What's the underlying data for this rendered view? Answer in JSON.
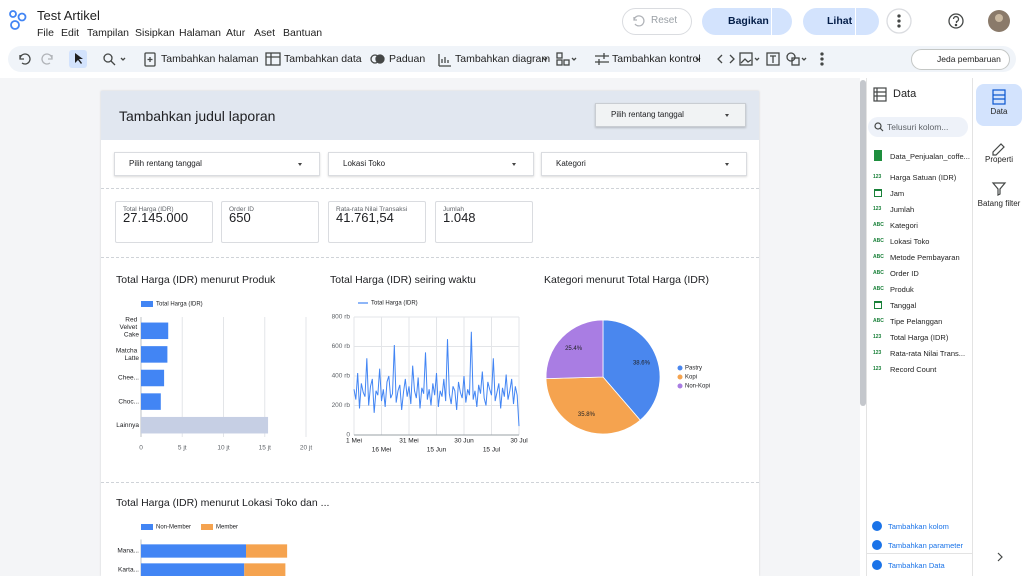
{
  "header": {
    "title": "Test Artikel",
    "menu": [
      "File",
      "Edit",
      "Tampilan",
      "Sisipkan",
      "Halaman",
      "Atur",
      "Aset",
      "Bantuan"
    ],
    "reset": "Reset",
    "share": "Bagikan",
    "view": "Lihat"
  },
  "toolbar": {
    "add_page": "Tambahkan halaman",
    "add_data": "Tambahkan data",
    "guide": "Paduan",
    "add_chart": "Tambahkan diagram",
    "add_control": "Tambahkan kontrol",
    "pause": "Jeda pembaruan"
  },
  "report": {
    "title": "Tambahkan judul laporan",
    "date_range": "Pilih rentang tanggal",
    "filters": [
      "Pilih rentang tanggal",
      "Lokasi Toko",
      "Kategori"
    ],
    "scorecards": [
      {
        "label": "Total Harga (IDR)",
        "value": "27.145.000"
      },
      {
        "label": "Order ID",
        "value": "650"
      },
      {
        "label": "Rata-rata Nilai Transaksi",
        "value": "41.761,54"
      },
      {
        "label": "Jumlah",
        "value": "1.048"
      }
    ]
  },
  "chart_data": [
    {
      "type": "bar",
      "orientation": "horizontal",
      "title": "Total Harga (IDR) menurut Produk",
      "categories": [
        "Red Velvet Cake",
        "Matcha Latte",
        "Chee...",
        "Choc...",
        "Lainnya"
      ],
      "series": [
        {
          "name": "Total Harga (IDR)",
          "color": "#4285f4",
          "colors": [
            "#4285f4",
            "#4285f4",
            "#4285f4",
            "#4285f4",
            "#c6cfe4"
          ],
          "values": [
            3300000,
            3200000,
            2800000,
            2400000,
            15400000
          ]
        }
      ],
      "xlim": [
        0,
        20000000
      ],
      "xticks": [
        0,
        {
          "value": 5000000,
          "label": "5 jt"
        },
        {
          "value": 10000000,
          "label": "10 jt"
        },
        {
          "value": 15000000,
          "label": "15 jt"
        },
        {
          "value": 20000000,
          "label": "20 jt"
        }
      ],
      "grid": true
    },
    {
      "type": "line",
      "title": "Total Harga (IDR) seiring waktu",
      "categories": [
        "1 Mei",
        null,
        null,
        null,
        null,
        null,
        null,
        null,
        null,
        null,
        null,
        null,
        null,
        null,
        null,
        "16 Mei",
        null,
        null,
        null,
        null,
        null,
        null,
        null,
        null,
        null,
        null,
        null,
        null,
        null,
        null,
        "31 Mei",
        null,
        null,
        null,
        null,
        null,
        null,
        null,
        null,
        null,
        null,
        null,
        null,
        null,
        null,
        "15 Jun",
        null,
        null,
        null,
        null,
        null,
        null,
        null,
        null,
        null,
        null,
        null,
        null,
        null,
        null,
        "30 Jun",
        null,
        null,
        null,
        null,
        null,
        null,
        null,
        null,
        null,
        null,
        null,
        null,
        null,
        null,
        "15 Jul",
        null,
        null,
        null,
        null,
        null,
        null,
        null,
        null,
        null,
        null,
        null,
        null,
        null,
        null,
        "30 Jul"
      ],
      "series": [
        {
          "name": "Total Harga (IDR)",
          "color": "#4285f4",
          "values": [
            310000,
            240000,
            420000,
            180000,
            350000,
            290000,
            260000,
            520000,
            200000,
            330000,
            380000,
            150000,
            300000,
            270000,
            450000,
            230000,
            310000,
            190000,
            360000,
            400000,
            250000,
            280000,
            610000,
            220000,
            300000,
            340000,
            170000,
            290000,
            380000,
            260000,
            330000,
            210000,
            470000,
            300000,
            250000,
            390000,
            180000,
            320000,
            280000,
            560000,
            240000,
            310000,
            200000,
            350000,
            270000,
            420000,
            190000,
            300000,
            260000,
            380000,
            230000,
            650000,
            280000,
            210000,
            330000,
            300000,
            170000,
            360000,
            290000,
            250000,
            400000,
            220000,
            310000,
            270000,
            700000,
            240000,
            300000,
            190000,
            340000,
            280000,
            430000,
            250000,
            200000,
            360000,
            310000,
            270000,
            520000,
            230000,
            290000,
            350000,
            180000,
            320000,
            260000,
            410000,
            240000,
            300000,
            380000,
            210000,
            330000,
            270000,
            60000
          ]
        }
      ],
      "ylim": [
        0,
        800000
      ],
      "yticks": [
        0,
        {
          "value": 200000,
          "label": "200 rb"
        },
        {
          "value": 400000,
          "label": "400 rb"
        },
        {
          "value": 600000,
          "label": "600 rb"
        },
        {
          "value": 800000,
          "label": "800 rb"
        }
      ],
      "grid": true
    },
    {
      "type": "pie",
      "title": "Kategori menurut Total Harga (IDR)",
      "categories": [
        "Pastry",
        "Kopi",
        "Non-Kopi"
      ],
      "values": [
        38.6,
        35.8,
        25.4
      ],
      "value_labels": [
        "38.6%",
        "35.8%",
        "25.4%"
      ],
      "colors": [
        "#4a87ee",
        "#f5a34f",
        "#a97de3"
      ]
    },
    {
      "type": "bar",
      "orientation": "horizontal",
      "stacked": true,
      "title": "Total Harga (IDR) menurut Lokasi Toko dan ...",
      "categories": [
        "Mana...",
        "Karta..."
      ],
      "series": [
        {
          "name": "Non-Member",
          "color": "#4285f4",
          "values": [
            6000000,
            5900000
          ]
        },
        {
          "name": "Member",
          "color": "#f5a34f",
          "values": [
            2350000,
            2350000
          ]
        }
      ],
      "xlim": [
        0,
        10000000
      ]
    }
  ],
  "panel": {
    "title": "Data",
    "search": "Telusuri kolom...",
    "source": "Data_Penjualan_coffe...",
    "fields": [
      {
        "icon": "123",
        "name": "Harga Satuan (IDR)"
      },
      {
        "name": "Jam"
      },
      {
        "icon": "123",
        "name": "Jumlah"
      },
      {
        "icon": "ABC",
        "name": "Kategori"
      },
      {
        "icon": "ABC",
        "name": "Lokasi Toko"
      },
      {
        "icon": "ABC",
        "name": "Metode Pembayaran"
      },
      {
        "icon": "ABC",
        "name": "Order ID"
      },
      {
        "icon": "ABC",
        "name": "Produk"
      },
      {
        "name": "Tanggal"
      },
      {
        "icon": "ABC",
        "name": "Tipe Pelanggan"
      },
      {
        "icon": "123",
        "name": "Total Harga (IDR)"
      },
      {
        "icon": "123",
        "name": "Rata-rata Nilai Trans..."
      },
      {
        "icon": "123",
        "name": "Record Count"
      }
    ],
    "add_field": "Tambahkan kolom",
    "add_param": "Tambahkan parameter",
    "add_data": "Tambahkan Data"
  },
  "rail": [
    "Data",
    "Properti",
    "Batang filter"
  ]
}
